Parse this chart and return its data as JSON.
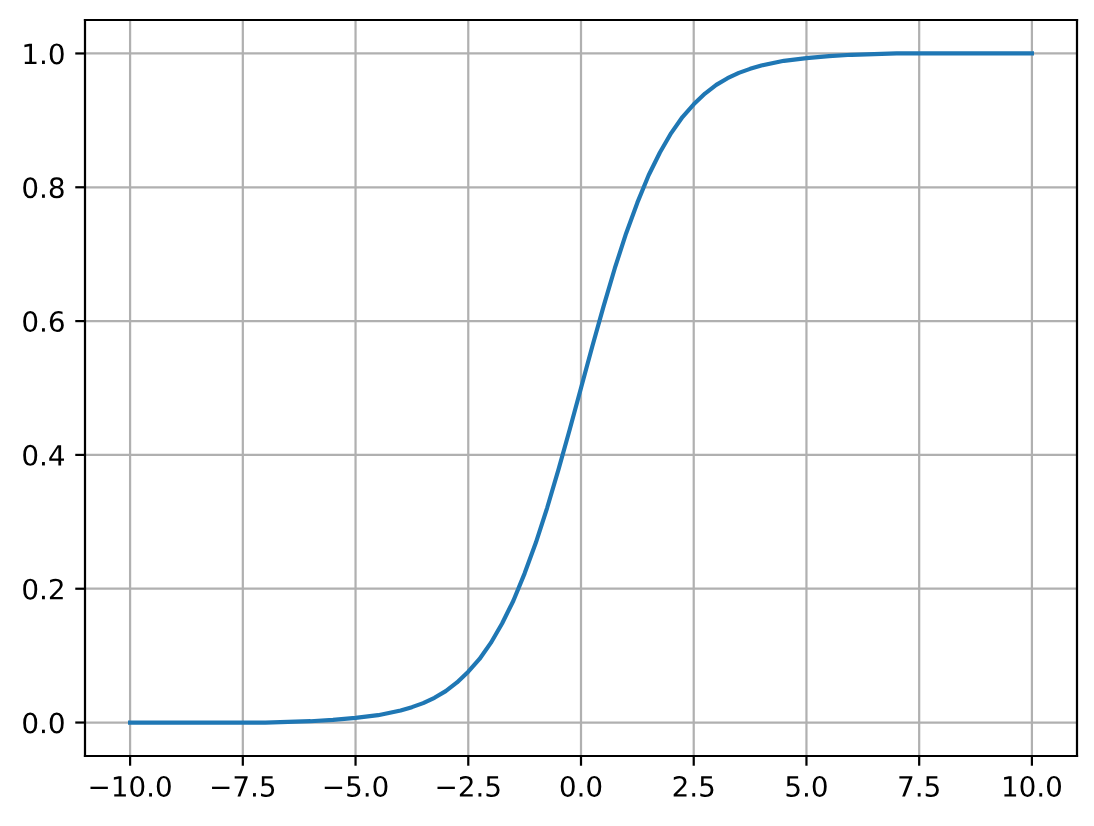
{
  "chart_data": {
    "type": "line",
    "x": [
      -10,
      -9,
      -8,
      -7,
      -6,
      -5.5,
      -5,
      -4.5,
      -4,
      -3.75,
      -3.5,
      -3.25,
      -3,
      -2.75,
      -2.5,
      -2.25,
      -2,
      -1.75,
      -1.5,
      -1.25,
      -1,
      -0.75,
      -0.5,
      -0.25,
      0,
      0.25,
      0.5,
      0.75,
      1,
      1.25,
      1.5,
      1.75,
      2,
      2.25,
      2.5,
      2.75,
      3,
      3.25,
      3.5,
      3.75,
      4,
      4.5,
      5,
      5.5,
      6,
      7,
      8,
      9,
      10
    ],
    "series": [
      {
        "color": "#1f77b4",
        "values": [
          0.0,
          0.0,
          0.0,
          0.0,
          0.002,
          0.004,
          0.007,
          0.011,
          0.018,
          0.023,
          0.029,
          0.037,
          0.047,
          0.06,
          0.076,
          0.095,
          0.119,
          0.148,
          0.182,
          0.223,
          0.269,
          0.321,
          0.378,
          0.438,
          0.5,
          0.562,
          0.622,
          0.679,
          0.731,
          0.777,
          0.818,
          0.852,
          0.881,
          0.905,
          0.924,
          0.94,
          0.953,
          0.963,
          0.971,
          0.977,
          0.982,
          0.989,
          0.993,
          0.996,
          0.998,
          1.0,
          1.0,
          1.0,
          1.0
        ]
      }
    ],
    "xlim": [
      -11,
      11
    ],
    "xticks": [
      {
        "value": -10,
        "label": "−10.0"
      },
      {
        "value": -7.5,
        "label": "−7.5"
      },
      {
        "value": -5,
        "label": "−5.0"
      },
      {
        "value": -2.5,
        "label": "−2.5"
      },
      {
        "value": 0,
        "label": "0.0"
      },
      {
        "value": 2.5,
        "label": "2.5"
      },
      {
        "value": 5,
        "label": "5.0"
      },
      {
        "value": 7.5,
        "label": "7.5"
      },
      {
        "value": 10,
        "label": "10.0"
      }
    ],
    "ylim": [
      -0.05,
      1.05
    ],
    "yticks": [
      {
        "value": 0,
        "label": "0.0"
      },
      {
        "value": 0.2,
        "label": "0.2"
      },
      {
        "value": 0.4,
        "label": "0.4"
      },
      {
        "value": 0.6,
        "label": "0.6"
      },
      {
        "value": 0.8,
        "label": "0.8"
      },
      {
        "value": 1,
        "label": "1.0"
      }
    ],
    "grid": true
  }
}
